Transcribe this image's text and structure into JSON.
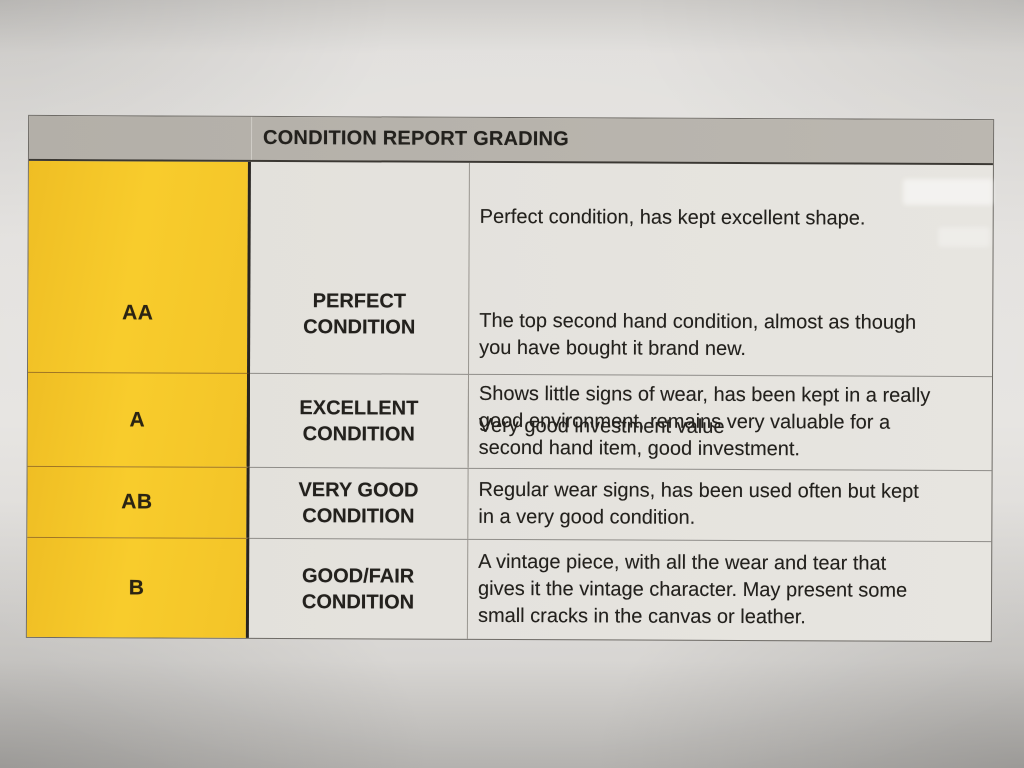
{
  "table": {
    "title": "CONDITION REPORT GRADING",
    "rows": [
      {
        "grade": "AA",
        "condition": "PERFECT\nCONDITION",
        "paragraphs": [
          "Perfect condition, has kept excellent shape.",
          "The top second hand condition, almost as though\nyou have bought it brand new.",
          "Very good investment value"
        ]
      },
      {
        "grade": "A",
        "condition": "EXCELLENT\nCONDITION",
        "description": "Shows little signs of wear, has been kept in a really\ngood environment, remains very valuable for a\nsecond hand item, good investment."
      },
      {
        "grade": "AB",
        "condition": "VERY GOOD\nCONDITION",
        "description": "Regular wear signs, has been used often but kept\nin a very good condition."
      },
      {
        "grade": "B",
        "condition": "GOOD/FAIR\nCONDITION",
        "description": "A vintage piece, with all the wear and tear that\ngives it the vintage character. May present some\nsmall cracks in the canvas or leather."
      }
    ]
  },
  "colors": {
    "grade_column_yellow": "#F5C62A",
    "header_gray": "#B7B3AC",
    "cell_background": "#E4E2DD",
    "paper_background": "#E5E3E0",
    "text": "#23211D"
  }
}
